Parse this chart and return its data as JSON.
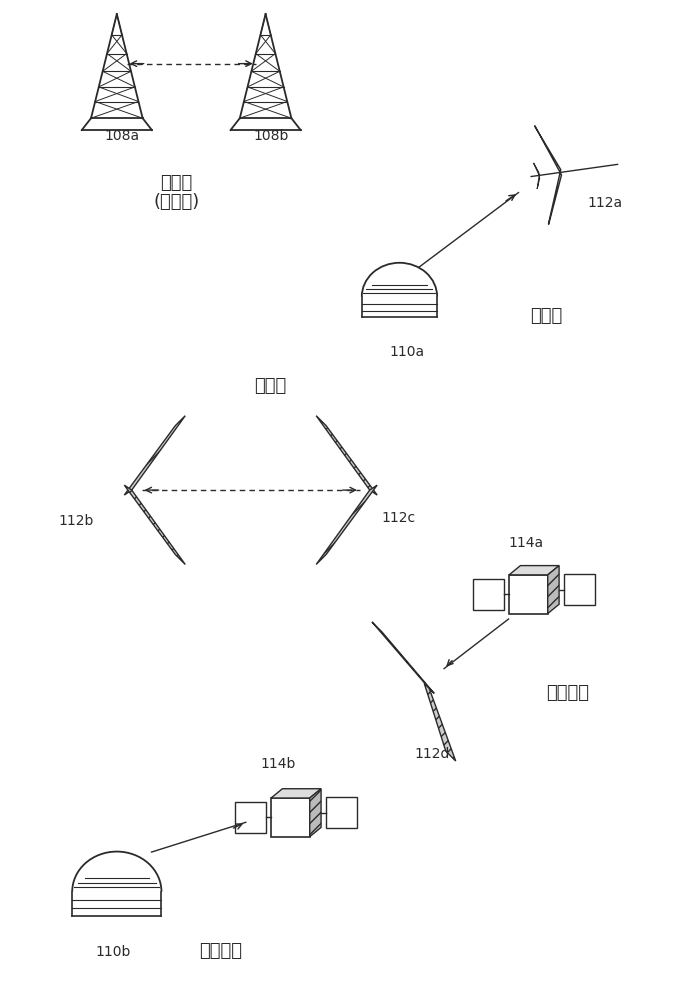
{
  "bg_color": "#ffffff",
  "line_color": "#2a2a2a",
  "hatch_color": "#aaaaaa",
  "text_108a": "108a",
  "text_108b": "108b",
  "text_gnd_gnd1": "地对地",
  "text_gnd_gnd2": "(塔对塔)",
  "text_112a": "112a",
  "text_110a": "110a",
  "text_gnd_air": "地对空",
  "text_air_air": "空对空",
  "text_112b": "112b",
  "text_112c": "112c",
  "text_114a": "114a",
  "text_air_space": "空对太空",
  "text_112d": "112d",
  "text_114b": "114b",
  "text_gnd_space": "地对太空",
  "text_110b": "110b"
}
